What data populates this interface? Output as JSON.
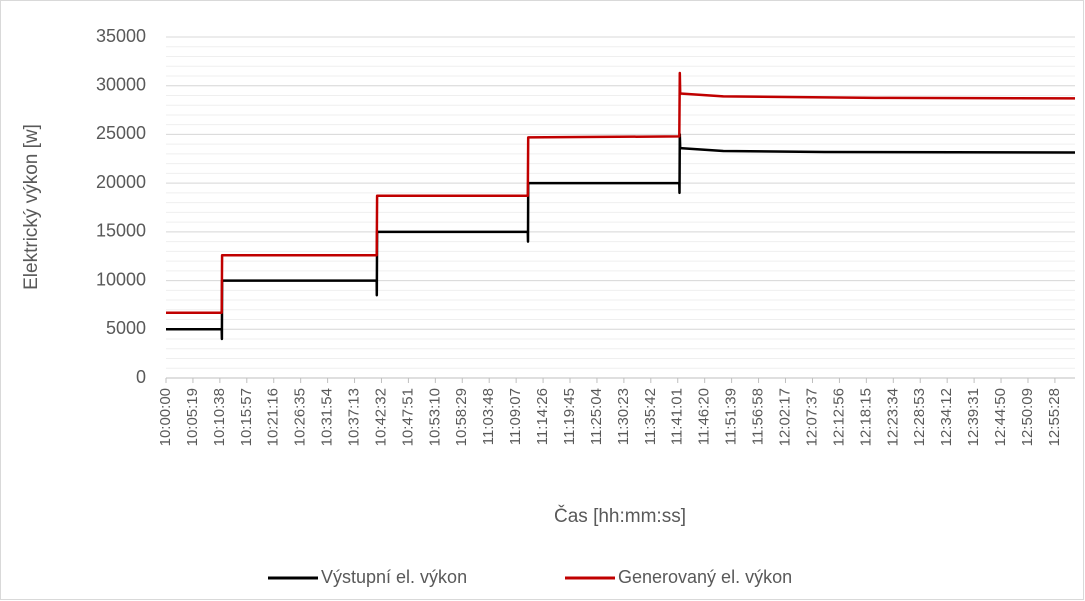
{
  "chart_data": {
    "type": "line",
    "y_label": "Elektrický výkon [w]",
    "x_label": "Čas [hh:mm:ss]",
    "xlim": [
      "10:00:00",
      "12:59:26"
    ],
    "xticks": [
      "10:00:00",
      "10:05:19",
      "10:10:38",
      "10:15:57",
      "10:21:16",
      "10:26:35",
      "10:31:54",
      "10:37:13",
      "10:42:32",
      "10:47:51",
      "10:53:10",
      "10:58:29",
      "11:03:48",
      "11:09:07",
      "11:14:26",
      "11:19:45",
      "11:25:04",
      "11:30:23",
      "11:35:42",
      "11:41:01",
      "11:46:20",
      "11:51:39",
      "11:56:58",
      "12:02:17",
      "12:07:37",
      "12:12:56",
      "12:18:15",
      "12:23:34",
      "12:28:53",
      "12:34:12",
      "12:39:31",
      "12:44:50",
      "12:50:09",
      "12:55:28"
    ],
    "ylim": [
      0,
      35000
    ],
    "yticks": [
      0,
      5000,
      10000,
      15000,
      20000,
      25000,
      30000,
      35000
    ],
    "grid": true,
    "minor_grid_step": 1000,
    "legend": "bottom",
    "series": [
      {
        "name": "Výstupní el. výkon",
        "color": "#000000",
        "x": [
          "10:00:00",
          "10:11:00",
          "10:11:02",
          "10:11:05",
          "10:41:35",
          "10:41:37",
          "10:41:40",
          "11:11:25",
          "11:11:27",
          "11:11:30",
          "11:41:20",
          "11:41:22",
          "11:41:25",
          "11:41:30",
          "11:50:00",
          "12:10:00",
          "12:59:26"
        ],
        "values": [
          5000,
          5000,
          4000,
          10000,
          10000,
          8500,
          15000,
          15000,
          14000,
          20000,
          20000,
          19000,
          25000,
          23600,
          23300,
          23200,
          23150
        ]
      },
      {
        "name": "Generovaný el. výkon",
        "color": "#c00000",
        "x": [
          "10:00:00",
          "10:11:00",
          "10:11:05",
          "10:41:35",
          "10:41:40",
          "11:11:25",
          "11:11:30",
          "11:41:20",
          "11:41:25",
          "11:41:30",
          "11:50:00",
          "12:20:00",
          "12:59:26"
        ],
        "values": [
          6700,
          6700,
          12600,
          12600,
          18700,
          18700,
          24700,
          24800,
          31300,
          29200,
          28900,
          28750,
          28700
        ]
      }
    ]
  }
}
